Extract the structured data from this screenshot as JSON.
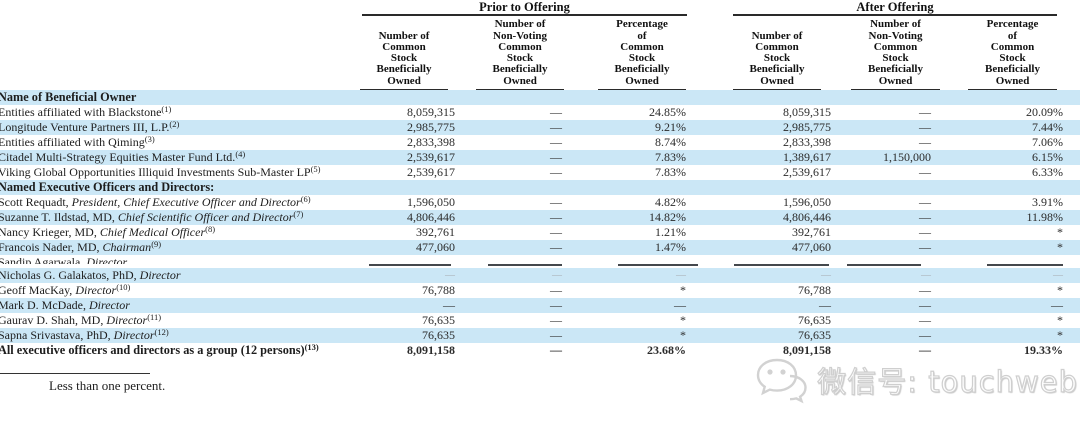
{
  "table": {
    "groups": [
      {
        "label": "Prior to Offering",
        "columns": [
          "Number of\nCommon\nStock\nBeneficially\nOwned",
          "Number of\nNon-Voting\nCommon\nStock\nBeneficially\nOwned",
          "Percentage\nof\nCommon\nStock\nBeneficially\nOwned"
        ]
      },
      {
        "label": "After Offering",
        "columns": [
          "Number of\nCommon\nStock\nBeneficially\nOwned",
          "Number of\nNon-Voting\nCommon\nStock\nBeneficially\nOwned",
          "Percentage\nof\nCommon\nStock\nBeneficially\nOwned"
        ]
      }
    ],
    "rows": [
      {
        "name": "Name of Beneficial Owner",
        "title": "",
        "sup": "",
        "bold": true,
        "shade": true,
        "cells": [
          "",
          "",
          "",
          "",
          "",
          ""
        ]
      },
      {
        "name": "Entities affiliated with Blackstone",
        "title": "",
        "sup": "(1)",
        "shade": false,
        "cells": [
          "8,059,315",
          "—",
          "24.85%",
          "8,059,315",
          "—",
          "20.09%"
        ]
      },
      {
        "name": "Longitude Venture Partners III, L.P.",
        "title": "",
        "sup": "(2)",
        "shade": true,
        "cells": [
          "2,985,775",
          "—",
          "9.21%",
          "2,985,775",
          "—",
          "7.44%"
        ]
      },
      {
        "name": "Entities affiliated with Qiming",
        "title": "",
        "sup": "(3)",
        "shade": false,
        "cells": [
          "2,833,398",
          "—",
          "8.74%",
          "2,833,398",
          "—",
          "7.06%"
        ]
      },
      {
        "name": "Citadel Multi-Strategy Equities Master Fund Ltd.",
        "title": "",
        "sup": "(4)",
        "shade": true,
        "cells": [
          "2,539,617",
          "—",
          "7.83%",
          "1,389,617",
          "1,150,000",
          "6.15%"
        ]
      },
      {
        "name": "Viking Global Opportunities Illiquid Investments Sub-Master LP",
        "title": "",
        "sup": "(5)",
        "shade": false,
        "cells": [
          "2,539,617",
          "—",
          "7.83%",
          "2,539,617",
          "—",
          "6.33%"
        ]
      },
      {
        "name": "Named Executive Officers and Directors:",
        "title": "",
        "sup": "",
        "bold": true,
        "shade": true,
        "cells": [
          "",
          "",
          "",
          "",
          "",
          ""
        ]
      },
      {
        "name": "Scott Requadt, ",
        "title": "President, Chief Executive Officer and Director",
        "sup": "(6)",
        "shade": false,
        "cells": [
          "1,596,050",
          "—",
          "4.82%",
          "1,596,050",
          "—",
          "3.91%"
        ]
      },
      {
        "name": "Suzanne T. Ildstad, MD, ",
        "title": "Chief Scientific Officer and Director",
        "sup": "(7)",
        "shade": true,
        "cells": [
          "4,806,446",
          "—",
          "14.82%",
          "4,806,446",
          "—",
          "11.98%"
        ]
      },
      {
        "name": "Nancy Krieger, MD, ",
        "title": "Chief Medical Officer",
        "sup": "(8)",
        "shade": false,
        "cells": [
          "392,761",
          "—",
          "1.21%",
          "392,761",
          "—",
          "*"
        ]
      },
      {
        "name": "Francois Nader, MD, ",
        "title": "Chairman",
        "sup": "(9)",
        "shade": true,
        "cells": [
          "477,060",
          "—",
          "1.47%",
          "477,060",
          "—",
          "*"
        ]
      },
      {
        "name": "Sandip Agarwala, ",
        "title": "Director",
        "sup": "",
        "shade": false,
        "clipped": true,
        "rules": true,
        "cells": [
          "",
          "",
          "",
          "",
          "",
          ""
        ]
      },
      {
        "name": "Nicholas G. Galakatos, PhD, ",
        "title": "Director",
        "sup": "",
        "shade": true,
        "faint": true,
        "cells": [
          "—",
          "—",
          "—",
          "—",
          "—",
          "—"
        ]
      },
      {
        "name": "Geoff MacKay, ",
        "title": "Director",
        "sup": "(10)",
        "shade": false,
        "cells": [
          "76,788",
          "—",
          "*",
          "76,788",
          "—",
          "*"
        ]
      },
      {
        "name": "Mark D. McDade, ",
        "title": "Director",
        "sup": "",
        "shade": true,
        "cells": [
          "—",
          "—",
          "—",
          "—",
          "—",
          "—"
        ]
      },
      {
        "name": "Gaurav D. Shah, MD, ",
        "title": "Director",
        "sup": "(11)",
        "shade": false,
        "cells": [
          "76,635",
          "—",
          "*",
          "76,635",
          "—",
          "*"
        ]
      },
      {
        "name": "Sapna Srivastava, PhD, ",
        "title": "Director",
        "sup": "(12)",
        "shade": true,
        "cells": [
          "76,635",
          "—",
          "*",
          "76,635",
          "—",
          "*"
        ]
      },
      {
        "name": "All executive officers and directors as a group (12 persons)",
        "title": "",
        "sup": "(13)",
        "bold": true,
        "shade": false,
        "cells": [
          "8,091,158",
          "—",
          "23.68%",
          "8,091,158",
          "—",
          "19.33%"
        ]
      }
    ]
  },
  "footnote": {
    "text": "Less than one percent."
  },
  "watermark": {
    "text": "微信号: touchweb",
    "icon": "wechat-icon"
  }
}
